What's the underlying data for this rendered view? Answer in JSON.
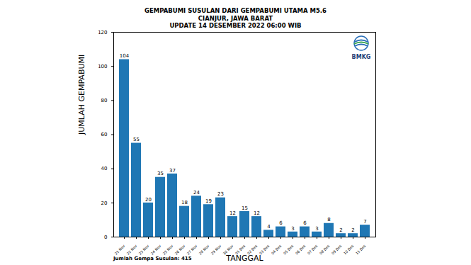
{
  "chart_data": {
    "type": "bar",
    "title": "GEMPABUMI SUSULAN DARI GEMPABUMI UTAMA M5.6",
    "subtitle": [
      "CIANJUR, JAWA BARAT",
      "UPDATE 14 DESEMBER 2022 06:00 WIB"
    ],
    "x_label": "TANGGAL",
    "y_label": "JUMLAH GEMPABUMI",
    "categories": [
      "21 Nov",
      "22 Nov",
      "23 Nov",
      "24 Nov",
      "25 Nov",
      "26 Nov",
      "27 Nov",
      "28 Nov",
      "29 Nov",
      "30 Nov",
      "01 Des",
      "02 Des",
      "03 Des",
      "04 Des",
      "05 Des",
      "06 Des",
      "07 Des",
      "08 Des",
      "09 Des",
      "10 Des",
      "11 Des"
    ],
    "values": [
      104,
      55,
      20,
      35,
      37,
      18,
      24,
      19,
      23,
      12,
      15,
      12,
      4,
      6,
      3,
      6,
      3,
      8,
      2,
      2,
      7
    ],
    "color": "#1f77b4",
    "ylim": [
      0,
      120
    ],
    "yticks": [
      0,
      20,
      40,
      60,
      80,
      100,
      120
    ],
    "grid": false,
    "data_labels": true,
    "annotations": [
      "BMKG",
      "Jumlah Gempa Susulan: 415"
    ]
  }
}
